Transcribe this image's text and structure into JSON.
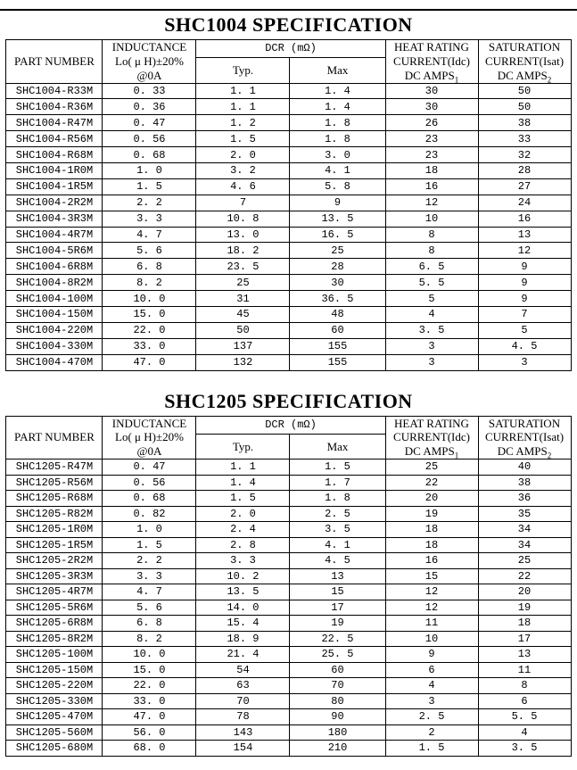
{
  "headers": {
    "part_number": "PART NUMBER",
    "inductance_line1": "INDUCTANCE",
    "inductance_line2": "Lo( μ H)±20%",
    "inductance_line3": "@0A",
    "dcr": "DCR (mΩ)",
    "typ": "Typ.",
    "max": "Max",
    "heat_line1": "HEAT RATING",
    "heat_line2": "CURRENT(Idc)",
    "heat_line3": "DC AMPS",
    "heat_subscript": "1",
    "saturation_line1": "SATURATION",
    "saturation_line2": "CURRENT(Isat)",
    "saturation_line3": "DC AMPS",
    "saturation_subscript": "2"
  },
  "shc1004": {
    "title": "SHC1004 SPECIFICATION",
    "rows": [
      [
        "SHC1004-R33M",
        "0. 33",
        "1. 1",
        "1. 4",
        "30",
        "50"
      ],
      [
        "SHC1004-R36M",
        "0. 36",
        "1. 1",
        "1. 4",
        "30",
        "50"
      ],
      [
        "SHC1004-R47M",
        "0. 47",
        "1. 2",
        "1. 8",
        "26",
        "38"
      ],
      [
        "SHC1004-R56M",
        "0. 56",
        "1. 5",
        "1. 8",
        "23",
        "33"
      ],
      [
        "SHC1004-R68M",
        "0. 68",
        "2. 0",
        "3. 0",
        "23",
        "32"
      ],
      [
        "SHC1004-1R0M",
        "1. 0",
        "3. 2",
        "4. 1",
        "18",
        "28"
      ],
      [
        "SHC1004-1R5M",
        "1. 5",
        "4. 6",
        "5. 8",
        "16",
        "27"
      ],
      [
        "SHC1004-2R2M",
        "2. 2",
        "7",
        "9",
        "12",
        "24"
      ],
      [
        "SHC1004-3R3M",
        "3. 3",
        "10. 8",
        "13. 5",
        "10",
        "16"
      ],
      [
        "SHC1004-4R7M",
        "4. 7",
        "13. 0",
        "16. 5",
        "8",
        "13"
      ],
      [
        "SHC1004-5R6M",
        "5. 6",
        "18. 2",
        "25",
        "8",
        "12"
      ],
      [
        "SHC1004-6R8M",
        "6. 8",
        "23. 5",
        "28",
        "6. 5",
        "9"
      ],
      [
        "SHC1004-8R2M",
        "8. 2",
        "25",
        "30",
        "5. 5",
        "9"
      ],
      [
        "SHC1004-100M",
        "10. 0",
        "31",
        "36. 5",
        "5",
        "9"
      ],
      [
        "SHC1004-150M",
        "15. 0",
        "45",
        "48",
        "4",
        "7"
      ],
      [
        "SHC1004-220M",
        "22. 0",
        "50",
        "60",
        "3. 5",
        "5"
      ],
      [
        "SHC1004-330M",
        "33. 0",
        "137",
        "155",
        "3",
        "4. 5"
      ],
      [
        "SHC1004-470M",
        "47. 0",
        "132",
        "155",
        "3",
        "3"
      ]
    ]
  },
  "shc1205": {
    "title": "SHC1205 SPECIFICATION",
    "alt_font_cells": [
      [
        8,
        3
      ],
      [
        8,
        4
      ],
      [
        8,
        5
      ]
    ],
    "rows": [
      [
        "SHC1205-R47M",
        "0. 47",
        "1. 1",
        "1. 5",
        "25",
        "40"
      ],
      [
        "SHC1205-R56M",
        "0. 56",
        "1. 4",
        "1. 7",
        "22",
        "38"
      ],
      [
        "SHC1205-R68M",
        "0. 68",
        "1. 5",
        "1. 8",
        "20",
        "36"
      ],
      [
        "SHC1205-R82M",
        "0. 82",
        "2. 0",
        "2. 5",
        "19",
        "35"
      ],
      [
        "SHC1205-1R0M",
        "1. 0",
        "2. 4",
        "3. 5",
        "18",
        "34"
      ],
      [
        "SHC1205-1R5M",
        "1. 5",
        "2. 8",
        "4. 1",
        "18",
        "34"
      ],
      [
        "SHC1205-2R2M",
        "2. 2",
        "3. 3",
        "4. 5",
        "16",
        "25"
      ],
      [
        "SHC1205-3R3M",
        "3. 3",
        "10. 2",
        "13",
        "15",
        "22"
      ],
      [
        "SHC1205-4R7M",
        "4. 7",
        "13. 5",
        "15",
        "12",
        "20"
      ],
      [
        "SHC1205-5R6M",
        "5. 6",
        "14. 0",
        "17",
        "12",
        "19"
      ],
      [
        "SHC1205-6R8M",
        "6. 8",
        "15. 4",
        "19",
        "11",
        "18"
      ],
      [
        "SHC1205-8R2M",
        "8. 2",
        "18. 9",
        "22. 5",
        "10",
        "17"
      ],
      [
        "SHC1205-100M",
        "10. 0",
        "21. 4",
        "25. 5",
        "9",
        "13"
      ],
      [
        "SHC1205-150M",
        "15. 0",
        "54",
        "60",
        "6",
        "11"
      ],
      [
        "SHC1205-220M",
        "22. 0",
        "63",
        "70",
        "4",
        "8"
      ],
      [
        "SHC1205-330M",
        "33. 0",
        "70",
        "80",
        "3",
        "6"
      ],
      [
        "SHC1205-470M",
        "47. 0",
        "78",
        "90",
        "2. 5",
        "5. 5"
      ],
      [
        "SHC1205-560M",
        "56. 0",
        "143",
        "180",
        "2",
        "4"
      ],
      [
        "SHC1205-680M",
        "68. 0",
        "154",
        "210",
        "1. 5",
        "3. 5"
      ]
    ]
  }
}
